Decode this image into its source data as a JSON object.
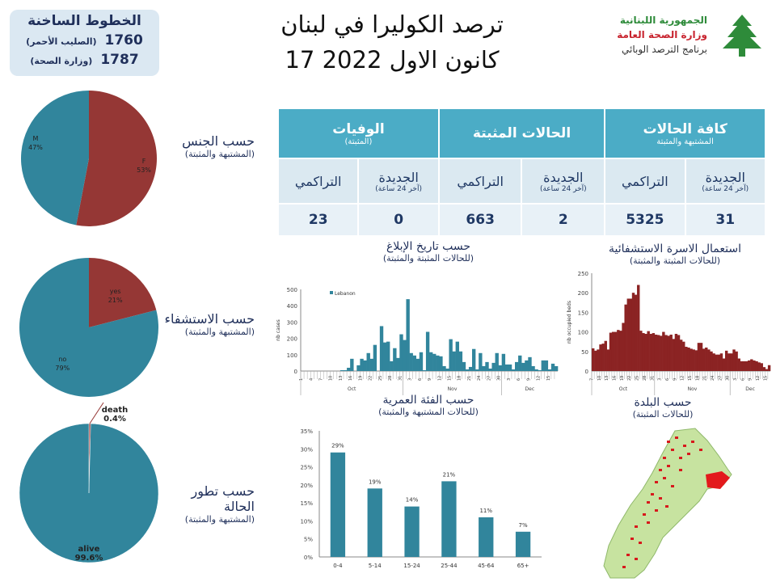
{
  "hotline": {
    "title": "الخطوط الساخنة",
    "lines": [
      {
        "number": "1760",
        "label": "(الصليب الأحمر)"
      },
      {
        "number": "1787",
        "label": "(وزارة الصحة)"
      }
    ]
  },
  "header": {
    "title_line1": "ترصد الكوليرا في لبنان",
    "title_line2": "17 كانون الاول 2022"
  },
  "logo": {
    "line1": "الجمهورية اللبنانية",
    "line2": "وزارة الصحة العامة",
    "line3": "برنامج الترصد الوبائي",
    "colors": {
      "line1": "#2e8b3a",
      "line2": "#c8242f",
      "line3": "#333333",
      "cedar": "#2e8b3a"
    }
  },
  "colors": {
    "teal": "#31859c",
    "red": "#953735",
    "header": "#4bacc6",
    "beds": "#8b2323"
  },
  "table": {
    "groups": [
      {
        "title": "كافة الحالات",
        "subtitle": "المشتبهة والمثبتة"
      },
      {
        "title": "الحالات المثبتة",
        "subtitle": ""
      },
      {
        "title": "الوفيات",
        "subtitle": "(المثبتة)"
      }
    ],
    "columns": [
      {
        "label": "الجديدة",
        "sub": "(آخر 24 ساعة)",
        "value": "31"
      },
      {
        "label": "التراكمي",
        "sub": "",
        "value": "5325"
      },
      {
        "label": "الجديدة",
        "sub": "(آخر 24 ساعة)",
        "value": "2"
      },
      {
        "label": "التراكمي",
        "sub": "",
        "value": "663"
      },
      {
        "label": "الجديدة",
        "sub": "(آخر 24 ساعة)",
        "value": "0"
      },
      {
        "label": "التراكمي",
        "sub": "",
        "value": "23"
      }
    ]
  },
  "sections": {
    "sex": {
      "title": "حسب الجنس",
      "subtitle": "(المشتبهة والمثبتة)"
    },
    "hosp": {
      "title": "حسب الاستشفاء",
      "subtitle": "(المشتبهة والمثبتة)"
    },
    "outcome": {
      "title": "حسب تطور الحالة",
      "subtitle": "(المشتبهة والمثبتة)"
    },
    "epi": {
      "title": "حسب تاريخ الإبلاغ",
      "subtitle": "(للحالات المثبتة والمثبتة)"
    },
    "beds": {
      "title": "استعمال الاسرة الاستشفائية",
      "subtitle": "(للحالات المثبتة والمثبتة)"
    },
    "age": {
      "title": "حسب الفئة العمرية",
      "subtitle": "(للحالات المشتبهة والمثبتة)"
    },
    "map": {
      "title": "حسب البلدة",
      "subtitle": "(للحالات المثبتة)"
    }
  },
  "chart_data": [
    {
      "type": "pie",
      "slices": [
        {
          "label": "F",
          "value": 53,
          "text": "53%",
          "color": "#953735"
        },
        {
          "label": "M",
          "value": 47,
          "text": "47%",
          "color": "#31859c"
        }
      ]
    },
    {
      "type": "pie",
      "slices": [
        {
          "label": "yes",
          "value": 21,
          "text": "21%",
          "color": "#953735"
        },
        {
          "label": "no",
          "value": 79,
          "text": "79%",
          "color": "#31859c"
        }
      ]
    },
    {
      "type": "pie",
      "slices": [
        {
          "label": "death",
          "value": 0.4,
          "text": "0.4%",
          "color": "#953735"
        },
        {
          "label": "alive",
          "value": 99.6,
          "text": "99.6%",
          "color": "#31859c"
        }
      ]
    },
    {
      "type": "bar",
      "ylabel": "nb cases",
      "ylim": [
        0,
        500
      ],
      "yticks": [
        0,
        100,
        200,
        300,
        400,
        500
      ],
      "legend": "Lebanon",
      "legend_position": "top-left",
      "months": [
        {
          "label": "Oct",
          "start_day": 1,
          "days": 31
        },
        {
          "label": "Nov",
          "days": 30
        },
        {
          "label": "Dec",
          "days": 17
        }
      ],
      "values": [
        0,
        0,
        0,
        0,
        0,
        0,
        0,
        0,
        0,
        0,
        0,
        0,
        5,
        5,
        20,
        75,
        0,
        35,
        75,
        65,
        110,
        75,
        160,
        0,
        275,
        175,
        180,
        60,
        140,
        80,
        225,
        190,
        440,
        110,
        95,
        75,
        115,
        5,
        240,
        115,
        105,
        95,
        90,
        30,
        15,
        195,
        120,
        180,
        120,
        55,
        10,
        25,
        135,
        10,
        110,
        30,
        55,
        15,
        50,
        110,
        35,
        105,
        40,
        40,
        10,
        55,
        95,
        50,
        65,
        85,
        30,
        10,
        5,
        65,
        65,
        10,
        45,
        30
      ]
    },
    {
      "type": "bar",
      "ylabel": "nb occupied beds",
      "ylim": [
        0,
        250
      ],
      "yticks": [
        0,
        50,
        100,
        150,
        200,
        250
      ],
      "months": [
        {
          "label": "Oct",
          "start_day": 7,
          "days": 25
        },
        {
          "label": "Nov",
          "days": 30
        },
        {
          "label": "Dec",
          "days": 16
        }
      ],
      "values": [
        58,
        52,
        55,
        68,
        70,
        77,
        55,
        98,
        100,
        100,
        105,
        103,
        123,
        170,
        185,
        185,
        200,
        195,
        220,
        103,
        97,
        95,
        102,
        95,
        97,
        93,
        92,
        90,
        100,
        92,
        90,
        93,
        82,
        95,
        92,
        80,
        75,
        62,
        60,
        57,
        55,
        53,
        72,
        72,
        57,
        60,
        55,
        50,
        45,
        42,
        42,
        45,
        32,
        52,
        45,
        45,
        55,
        50,
        32,
        25,
        25,
        25,
        27,
        30,
        27,
        25,
        22,
        20,
        10,
        5,
        15
      ]
    },
    {
      "type": "bar",
      "categories": [
        "0-4",
        "5-14",
        "15-24",
        "25-44",
        "45-64",
        "65+"
      ],
      "values": [
        29,
        19,
        14,
        21,
        11,
        7
      ],
      "data_labels": [
        "29%",
        "19%",
        "14%",
        "21%",
        "11%",
        "7%"
      ],
      "ylim": [
        0,
        35
      ],
      "yticks": [
        "0%",
        "5%",
        "10%",
        "15%",
        "20%",
        "25%",
        "30%",
        "35%"
      ],
      "color": "#31859c"
    }
  ]
}
